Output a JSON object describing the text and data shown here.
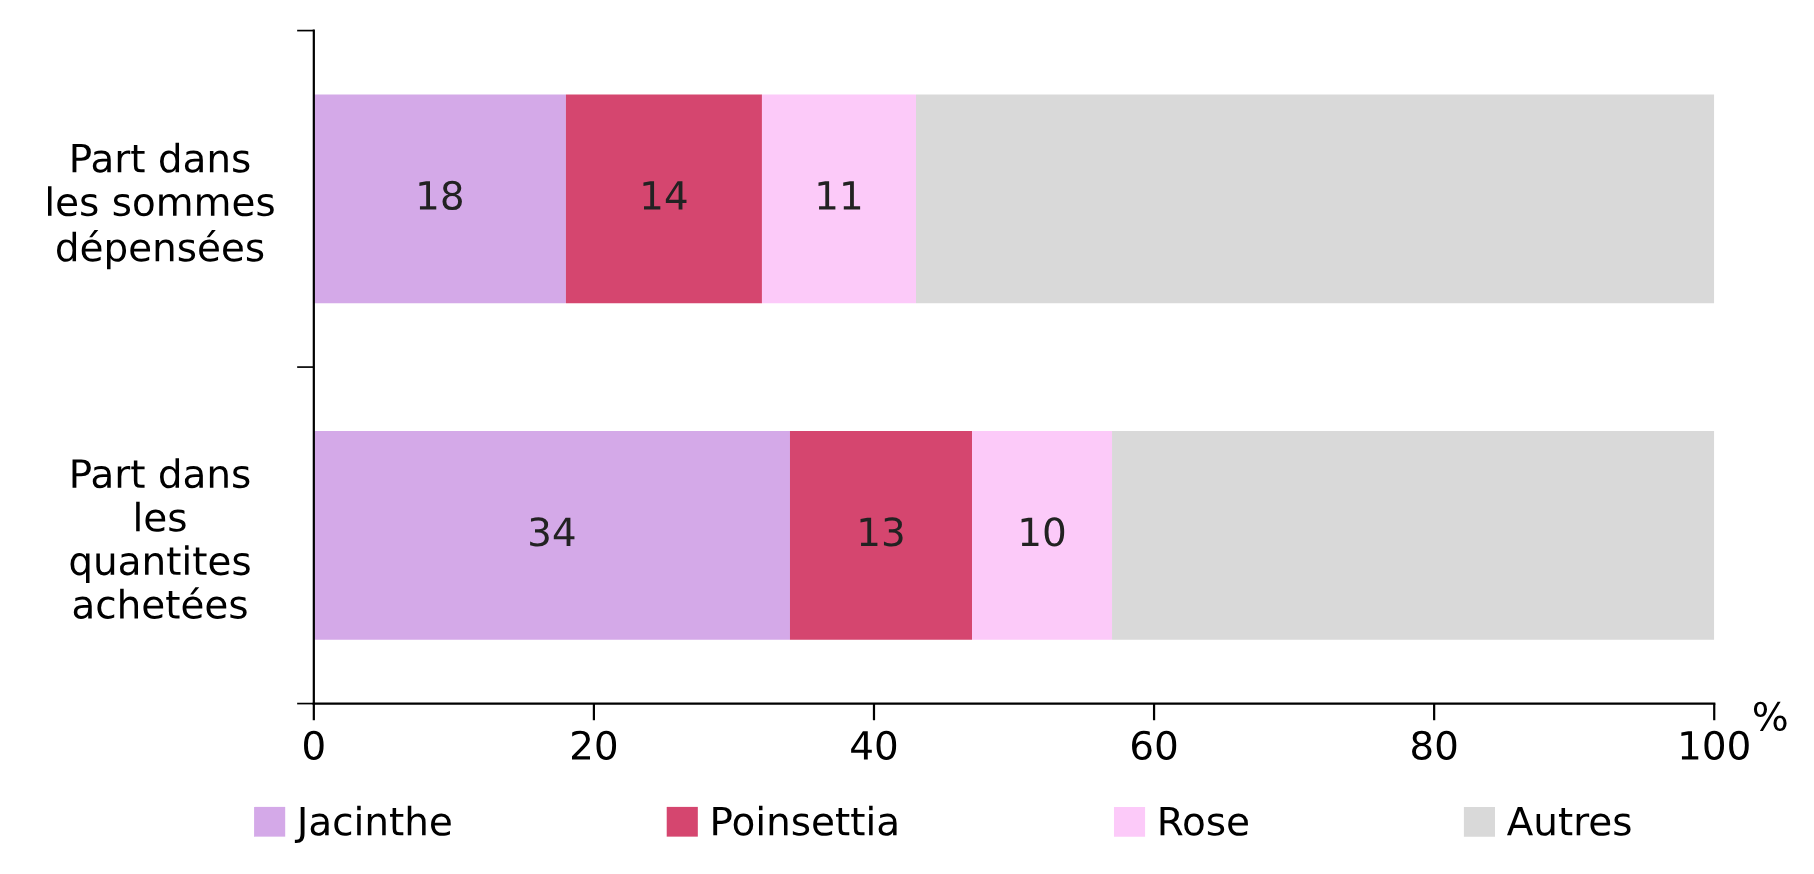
{
  "chart_data": {
    "type": "bar",
    "orientation": "horizontal",
    "stacked": true,
    "categories": [
      "Part dans\nles sommes\ndépensées",
      "Part dans\nles\nquantites\nachetées"
    ],
    "series": [
      {
        "name": "Jacinthe",
        "color": "#d4a9e8",
        "values": [
          18,
          34
        ],
        "value_labels": [
          "18",
          "34"
        ]
      },
      {
        "name": "Poinsettia",
        "color": "#d5466f",
        "values": [
          14,
          13
        ],
        "value_labels": [
          "14",
          "13"
        ]
      },
      {
        "name": "Rose",
        "color": "#fccaf9",
        "values": [
          11,
          10
        ],
        "value_labels": [
          "11",
          "10"
        ]
      },
      {
        "name": "Autres",
        "color": "#d9d9d9",
        "values": [
          57,
          43
        ],
        "value_labels": [
          null,
          null
        ]
      }
    ],
    "xlabel": "%",
    "xlim": [
      0,
      100
    ],
    "xticks": [
      0,
      20,
      40,
      60,
      80,
      100
    ],
    "grid": false,
    "legend": "bottom"
  }
}
